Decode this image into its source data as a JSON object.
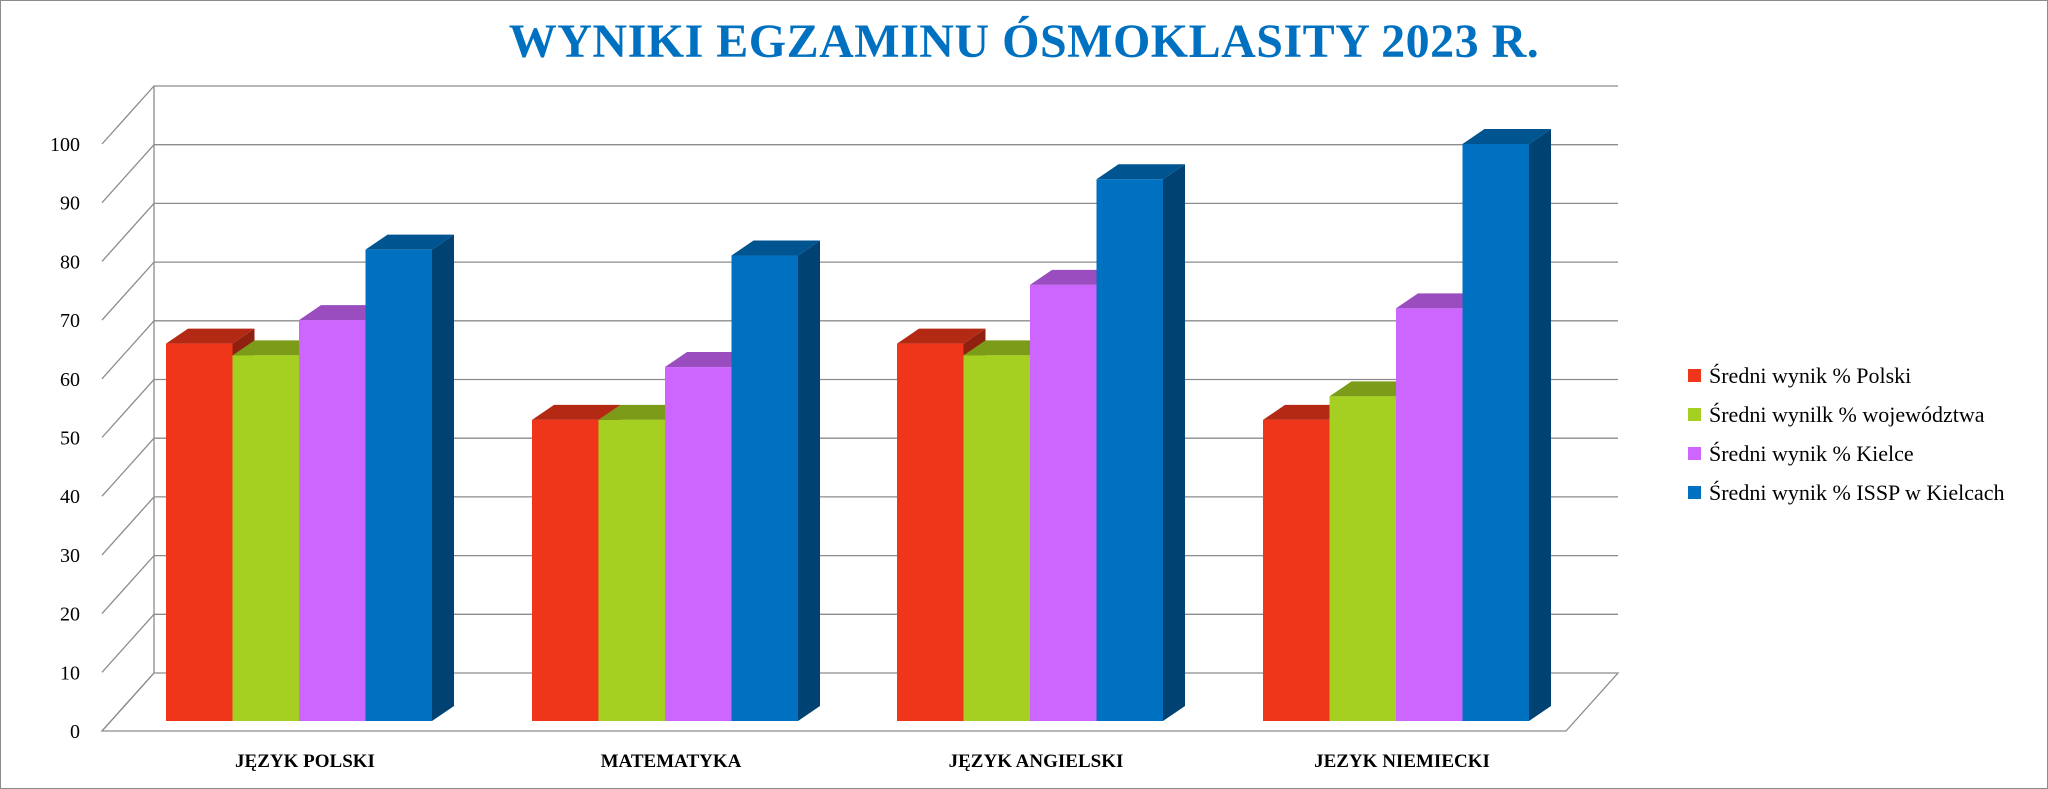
{
  "chart_data": {
    "type": "bar",
    "title": "WYNIKI EGZAMINU ÓSMOKLASITY 2023 R.",
    "categories": [
      "JĘZYK POLSKI",
      "MATEMATYKA",
      "JĘZYK ANGIELSKI",
      "JEZYK NIEMIECKI"
    ],
    "series": [
      {
        "name": "Średni wynik % Polski",
        "color": "#f0361a",
        "values": [
          66,
          53,
          66,
          53
        ]
      },
      {
        "name": "Średni wynilk % województwa",
        "color": "#a5d021",
        "values": [
          64,
          53,
          64,
          57
        ]
      },
      {
        "name": "Średni wynik % Kielce",
        "color": "#cc66ff",
        "values": [
          70,
          62,
          76,
          72
        ]
      },
      {
        "name": "Średni wynik % ISSP w Kielcach",
        "color": "#0070c0",
        "values": [
          82,
          81,
          94,
          100
        ]
      }
    ],
    "ylim": [
      0,
      100
    ],
    "yticks": [
      "0",
      "10",
      "20",
      "30",
      "40",
      "50",
      "60",
      "70",
      "80",
      "90",
      "100"
    ],
    "grid": true,
    "legend_position": "right",
    "three_d": true
  }
}
